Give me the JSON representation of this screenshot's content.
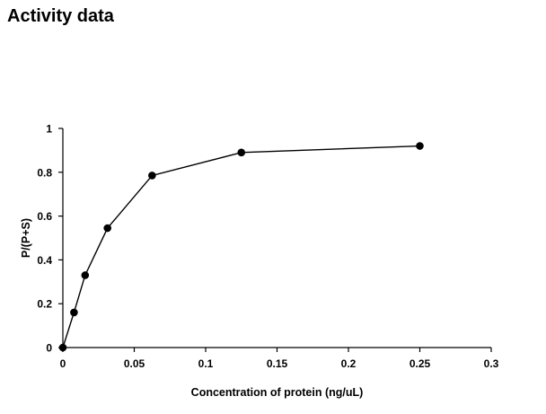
{
  "page": {
    "title": "Activity data"
  },
  "chart_data": {
    "type": "line",
    "title": "",
    "xlabel": "Concentration of protein (ng/uL)",
    "ylabel": "P/(P+S)",
    "xlim": [
      0,
      0.3
    ],
    "ylim": [
      0,
      1
    ],
    "x_ticks": [
      0,
      0.05,
      0.1,
      0.15,
      0.2,
      0.25,
      0.3
    ],
    "y_ticks": [
      0,
      0.2,
      0.4,
      0.6,
      0.8,
      1
    ],
    "x_tick_labels": [
      "0",
      "0.05",
      "0.1",
      "0.15",
      "0.2",
      "0.25",
      "0.3"
    ],
    "y_tick_labels": [
      "0",
      "0.2",
      "0.4",
      "0.6",
      "0.8",
      "1"
    ],
    "grid": false,
    "legend": "none",
    "series": [
      {
        "x": [
          0,
          0.0078,
          0.0156,
          0.03125,
          0.0625,
          0.125,
          0.25
        ],
        "y": [
          0,
          0.16,
          0.33,
          0.545,
          0.785,
          0.89,
          0.92
        ],
        "color": "#000000",
        "marker": "circle"
      }
    ]
  }
}
